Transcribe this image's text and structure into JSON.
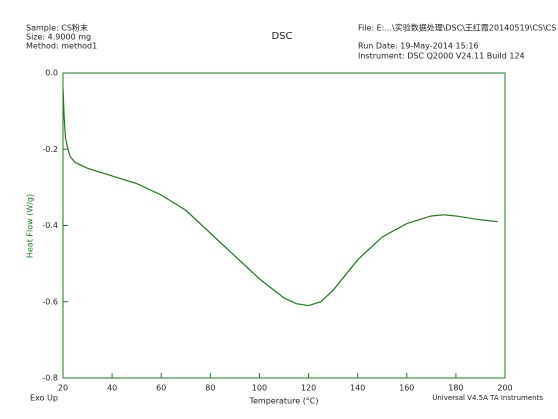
{
  "chart_data": {
    "type": "line",
    "title": "DSC",
    "header_left": [
      "Sample: CS粉末",
      "Size: 4.9000 mg",
      "Method: method1"
    ],
    "header_right": [
      "File: E:...\\实验数据处理\\DSC\\王红霞20140519\\CS\\CS",
      "Run Date: 19-May-2014 15:16",
      "Instrument: DSC Q2000 V24.11 Build 124"
    ],
    "x_label": "Temperature (°C)",
    "y_label": "Heat Flow (W/g)",
    "footer_left": "Exo Up",
    "footer_right": "Universal V4.5A TA Instruments",
    "x": [
      20,
      20.5,
      21,
      22,
      23,
      25,
      30,
      40,
      50,
      60,
      70,
      80,
      90,
      100,
      110,
      115,
      120,
      125,
      130,
      140,
      150,
      160,
      170,
      175,
      180,
      190,
      197
    ],
    "series": [
      {
        "color": "#1e7a1e",
        "values": [
          -0.04,
          -0.12,
          -0.17,
          -0.2,
          -0.22,
          -0.235,
          -0.25,
          -0.27,
          -0.29,
          -0.32,
          -0.36,
          -0.42,
          -0.48,
          -0.54,
          -0.59,
          -0.605,
          -0.61,
          -0.6,
          -0.57,
          -0.49,
          -0.43,
          -0.395,
          -0.375,
          -0.372,
          -0.375,
          -0.385,
          -0.39
        ]
      }
    ],
    "xlim": [
      20,
      200
    ],
    "xticks": [
      20,
      40,
      60,
      80,
      100,
      120,
      140,
      160,
      180,
      200
    ],
    "ylim": [
      -0.8,
      0
    ],
    "yticks": [
      {
        "value": 0,
        "label": "0.0"
      },
      -0.2,
      -0.4,
      -0.6,
      -0.8
    ],
    "axis_color": "#1e7a1e"
  }
}
